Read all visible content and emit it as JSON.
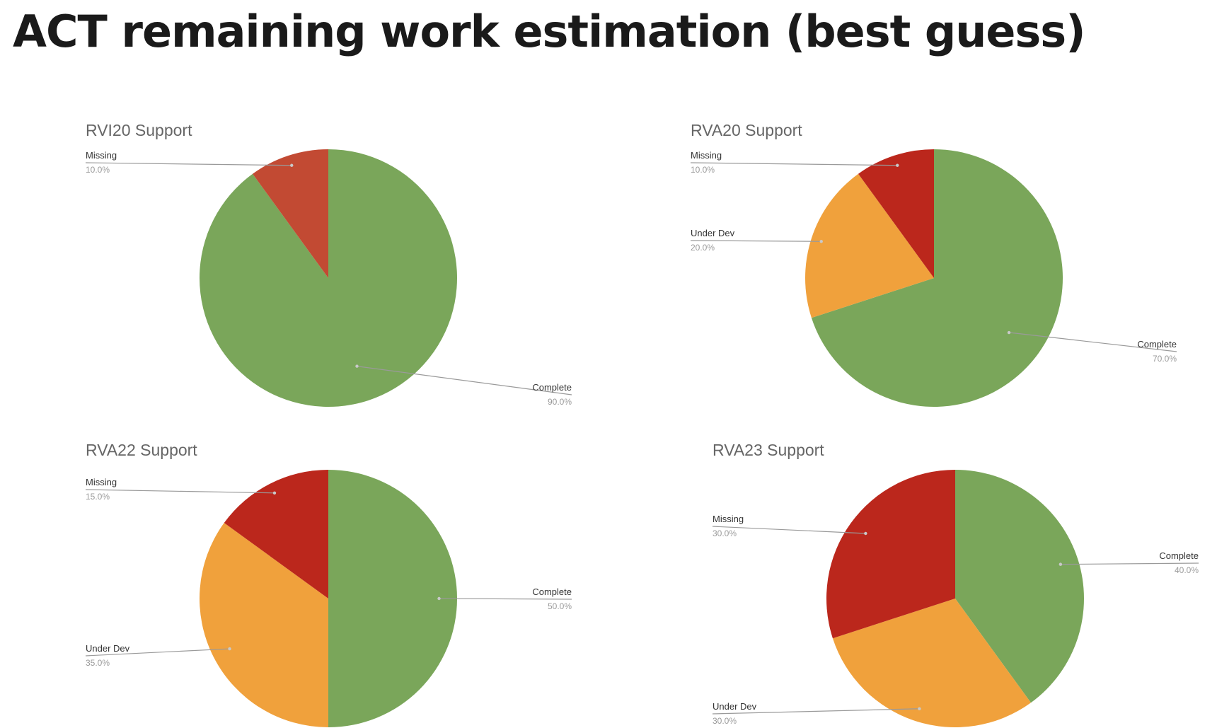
{
  "slide": {
    "title": "ACT remaining work estimation (best guess)"
  },
  "colors": {
    "complete": "#7aa65a",
    "under_dev": "#f0a13c",
    "missing_rvi20": "#c24a33",
    "missing": "#bb271c",
    "leader": "#9a9a9a",
    "label_name": "#333333",
    "label_value": "#9a9a9a",
    "chart_title": "#666666"
  },
  "chart_data": [
    {
      "type": "pie",
      "title": "RVI20 Support",
      "slices": [
        {
          "label": "Complete",
          "value": 90,
          "display": "90.0%",
          "color": "#7aa65a"
        },
        {
          "label": "Missing",
          "value": 10,
          "display": "10.0%",
          "color": "#c24a33"
        }
      ]
    },
    {
      "type": "pie",
      "title": "RVA20 Support",
      "slices": [
        {
          "label": "Complete",
          "value": 70,
          "display": "70.0%",
          "color": "#7aa65a"
        },
        {
          "label": "Under Dev",
          "value": 20,
          "display": "20.0%",
          "color": "#f0a13c"
        },
        {
          "label": "Missing",
          "value": 10,
          "display": "10.0%",
          "color": "#bb271c"
        }
      ]
    },
    {
      "type": "pie",
      "title": "RVA22 Support",
      "slices": [
        {
          "label": "Complete",
          "value": 50,
          "display": "50.0%",
          "color": "#7aa65a"
        },
        {
          "label": "Under Dev",
          "value": 35,
          "display": "35.0%",
          "color": "#f0a13c"
        },
        {
          "label": "Missing",
          "value": 15,
          "display": "15.0%",
          "color": "#bb271c"
        }
      ]
    },
    {
      "type": "pie",
      "title": "RVA23 Support",
      "slices": [
        {
          "label": "Complete",
          "value": 40,
          "display": "40.0%",
          "color": "#7aa65a"
        },
        {
          "label": "Under Dev",
          "value": 30,
          "display": "30.0%",
          "color": "#f0a13c"
        },
        {
          "label": "Missing",
          "value": 30,
          "display": "30.0%",
          "color": "#bb271c"
        }
      ]
    }
  ]
}
